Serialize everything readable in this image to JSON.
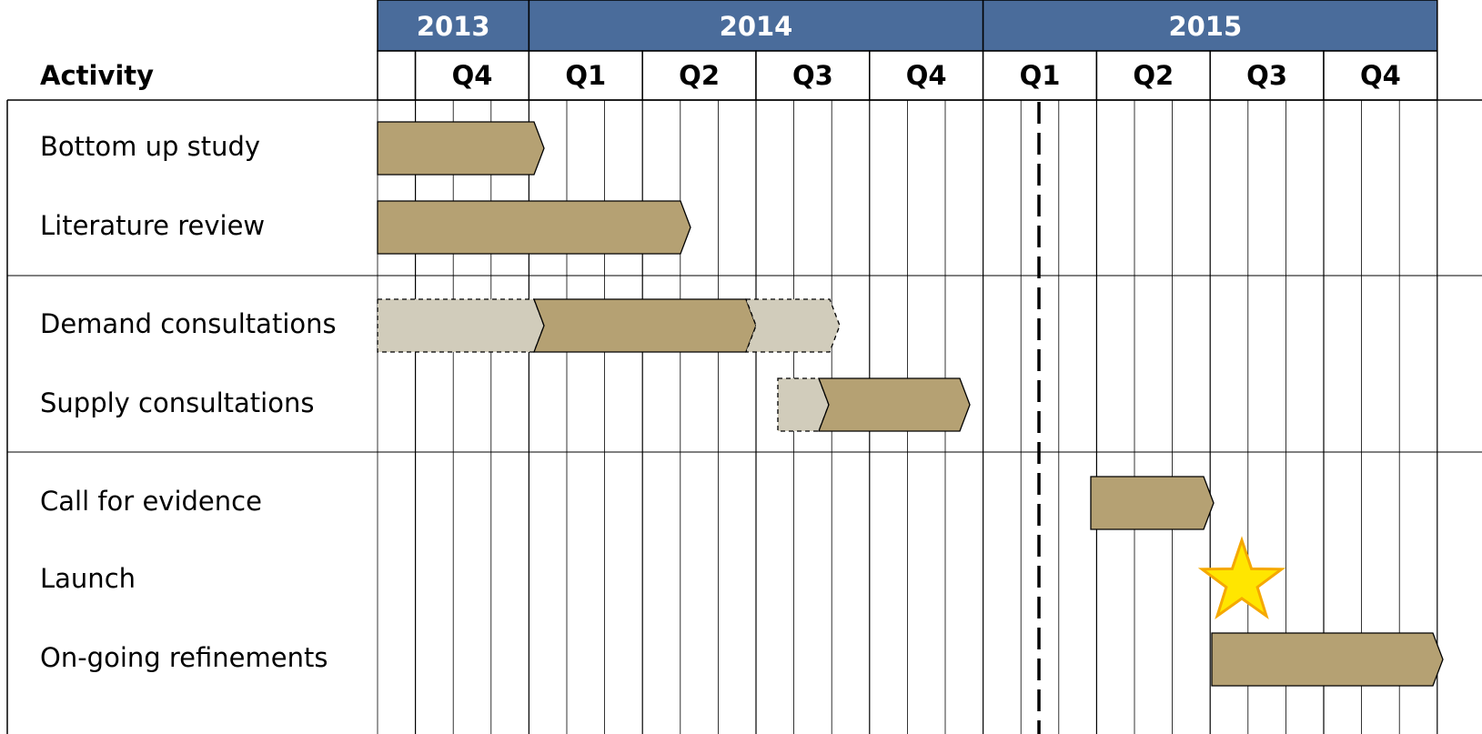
{
  "header": {
    "activity_label": "Activity",
    "years": [
      "2013",
      "2014",
      "2015"
    ],
    "quarters": [
      "Q4",
      "Q1",
      "Q2",
      "Q3",
      "Q4",
      "Q1",
      "Q2",
      "Q3",
      "Q4"
    ]
  },
  "activities": [
    "Bottom up study",
    "Literature review",
    "Demand consultations",
    "Supply consultations",
    "Call for evidence",
    "Launch",
    "On-going refinements"
  ]
}
